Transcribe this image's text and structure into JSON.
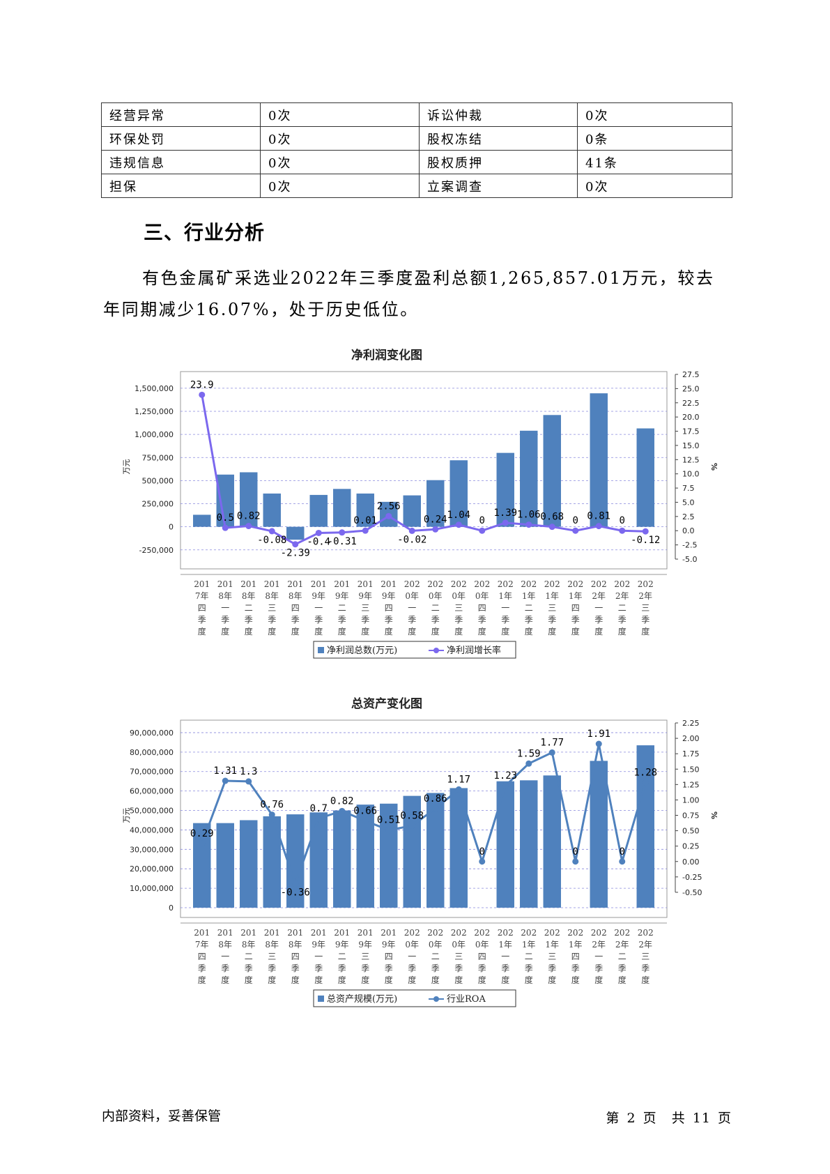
{
  "risk_table": [
    [
      "经营异常",
      "0次",
      "诉讼仲裁",
      "0次"
    ],
    [
      "环保处罚",
      "0次",
      "股权冻结",
      "0条"
    ],
    [
      "违规信息",
      "0次",
      "股权质押",
      "41条"
    ],
    [
      "担保",
      "0次",
      "立案调查",
      "0次"
    ]
  ],
  "section": {
    "title": "三、行业分析",
    "paragraph": "有色金属矿采选业2022年三季度盈利总额1,265,857.01万元，较去年同期减少16.07%，处于历史低位。"
  },
  "quarters": [
    "2017年四季度",
    "2018年一季度",
    "2018年二季度",
    "2018年三季度",
    "2018年四季度",
    "2019年一季度",
    "2019年二季度",
    "2019年三季度",
    "2019年四季度",
    "2020年一季度",
    "2020年二季度",
    "2020年三季度",
    "2020年四季度",
    "2021年一季度",
    "2021年二季度",
    "2021年三季度",
    "2021年四季度",
    "2022年一季度",
    "2022年二季度",
    "2022年三季度"
  ],
  "chart_data": [
    {
      "type": "bar",
      "title": "净利润变化图",
      "ylabel": "万元",
      "y2label": "%",
      "ylim": [
        -350000,
        1650000
      ],
      "y2lim": [
        -5.0,
        27.5
      ],
      "left_ticks": [
        -250000,
        0,
        250000,
        500000,
        750000,
        1000000,
        1250000,
        1500000
      ],
      "left_tick_labels": [
        "-250,000",
        "0",
        "250,000",
        "500,000",
        "750,000",
        "1,000,000",
        "1,250,000",
        "1,500,000"
      ],
      "right_ticks": [
        -5.0,
        -2.5,
        0.0,
        2.5,
        5.0,
        7.5,
        10.0,
        12.5,
        15.0,
        17.5,
        20.0,
        22.5,
        25.0,
        27.5
      ],
      "right_tick_labels": [
        "-5.0",
        "-2.5",
        "0.0",
        "2.5",
        "5.0",
        "7.5",
        "10.0",
        "12.5",
        "15.0",
        "17.5",
        "20.0",
        "22.5",
        "25.0",
        "27.5"
      ],
      "grid": true,
      "legend_position": "bottom",
      "series": [
        {
          "name": "净利润总数(万元)",
          "kind": "bar",
          "axis": "left",
          "color": "#4f81bd",
          "values": [
            130000,
            565000,
            590000,
            360000,
            -140000,
            345000,
            410000,
            360000,
            270000,
            340000,
            505000,
            720000,
            0,
            800000,
            1040000,
            1210000,
            0,
            1445000,
            0,
            1065000
          ]
        },
        {
          "name": "净利润增长率",
          "kind": "line",
          "axis": "right",
          "color": "#7b68ee",
          "values": [
            23.9,
            0.5,
            0.82,
            -0.08,
            -2.39,
            -0.4,
            -0.31,
            0.01,
            2.56,
            -0.02,
            0.24,
            1.04,
            0,
            1.39,
            1.06,
            0.68,
            0,
            0.81,
            0,
            -0.12
          ],
          "labels": [
            "23.9",
            "0.5",
            "0.82",
            "-0.08",
            "-2.39",
            "-0.4",
            "-0.31",
            "0.01",
            "2.56",
            "-0.02",
            "0.24",
            "1.04",
            "0",
            "1.39",
            "1.06",
            "0.68",
            "0",
            "0.81",
            "0",
            "-0.12"
          ]
        }
      ]
    },
    {
      "type": "bar",
      "title": "总资产变化图",
      "ylabel": "万元",
      "y2label": "%",
      "ylim": [
        0,
        95000000
      ],
      "y2lim": [
        -0.75,
        2.25
      ],
      "left_ticks": [
        0,
        10000000,
        20000000,
        30000000,
        40000000,
        50000000,
        60000000,
        70000000,
        80000000,
        90000000
      ],
      "left_tick_labels": [
        "0",
        "10,000,000",
        "20,000,000",
        "30,000,000",
        "40,000,000",
        "50,000,000",
        "60,000,000",
        "70,000,000",
        "80,000,000",
        "90,000,000"
      ],
      "right_ticks": [
        -0.5,
        -0.25,
        0.0,
        0.25,
        0.5,
        0.75,
        1.0,
        1.25,
        1.5,
        1.75,
        2.0,
        2.25
      ],
      "right_tick_labels": [
        "-0.50",
        "-0.25",
        "0.00",
        "0.25",
        "0.50",
        "0.75",
        "1.00",
        "1.25",
        "1.50",
        "1.75",
        "2.00",
        "2.25"
      ],
      "grid": true,
      "legend_position": "bottom",
      "series": [
        {
          "name": "总资产规模(万元)",
          "kind": "bar",
          "axis": "left",
          "color": "#4f81bd",
          "values": [
            43500000,
            43500000,
            45000000,
            47000000,
            48000000,
            49000000,
            50000000,
            53000000,
            53500000,
            57500000,
            59000000,
            61500000,
            0,
            65000000,
            65500000,
            68000000,
            0,
            75500000,
            0,
            83500000
          ]
        },
        {
          "name": "行业ROA",
          "kind": "line",
          "axis": "right",
          "color": "#4f81bd",
          "values": [
            0.29,
            1.31,
            1.3,
            0.76,
            -0.36,
            0.7,
            0.82,
            0.66,
            0.51,
            0.58,
            0.86,
            1.17,
            0,
            1.23,
            1.59,
            1.77,
            0,
            1.91,
            0,
            1.28
          ],
          "labels": [
            "0.29",
            "1.31",
            "1.3",
            "0.76",
            "-0.36",
            "0.7",
            "0.82",
            "0.66",
            "0.51",
            "0.58",
            "0.86",
            "1.17",
            "0",
            "1.23",
            "1.59",
            "1.77",
            "0",
            "1.91",
            "0",
            "1.28"
          ]
        }
      ]
    }
  ],
  "footer": {
    "left": "内部资料，妥善保管",
    "page_prefix": "第",
    "page_num": "2",
    "page_unit": "页",
    "total_prefix": "共",
    "total_num": "11",
    "total_unit": "页"
  }
}
